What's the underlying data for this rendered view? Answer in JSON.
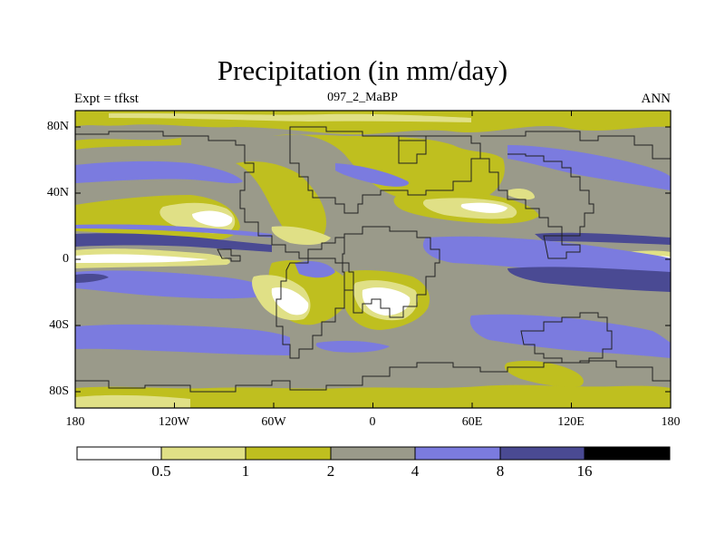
{
  "title": "Precipitation (in mm/day)",
  "left_label": "Expt = tfkst",
  "center_label": "097_2_MaBP",
  "right_label": "ANN",
  "y_ticks": [
    "80N",
    "40N",
    "0",
    "40S",
    "80S"
  ],
  "x_ticks": [
    "180",
    "120W",
    "60W",
    "0",
    "60E",
    "120E",
    "180"
  ],
  "colorbar": {
    "labels": [
      "0.5",
      "1",
      "2",
      "4",
      "8",
      "16"
    ],
    "colors": [
      "#ffffff",
      "#e0e086",
      "#bfbf1f",
      "#9a9a8a",
      "#7b7bdf",
      "#4a4a93",
      "#000000"
    ]
  }
}
